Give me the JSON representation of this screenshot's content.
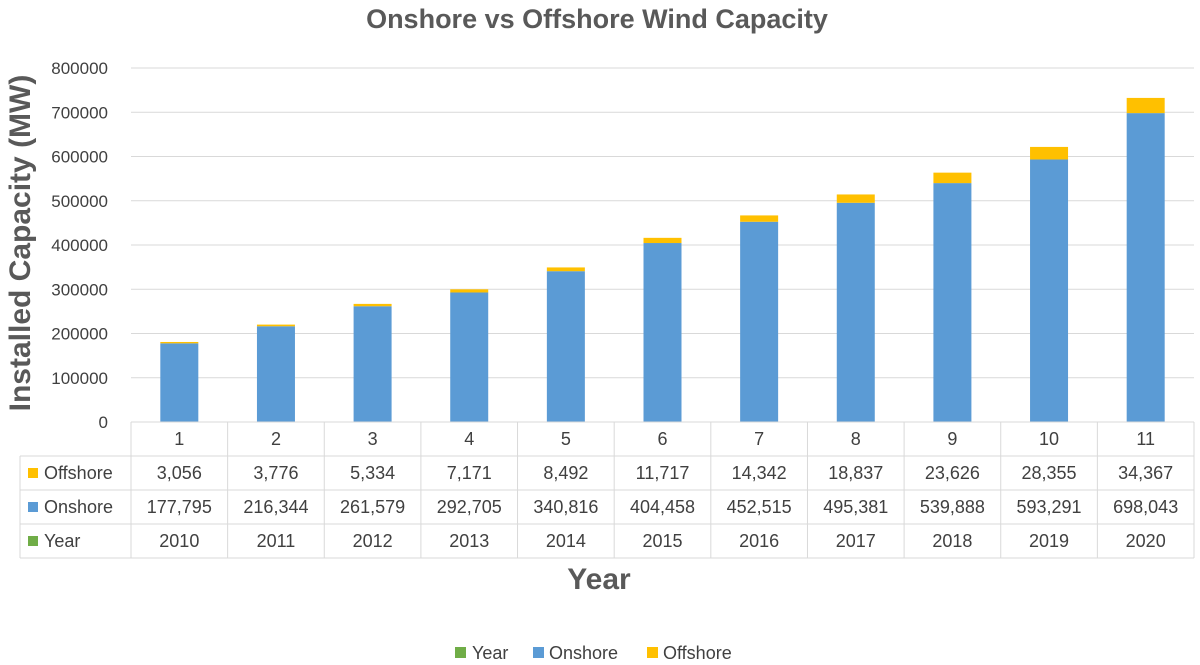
{
  "chart_data": {
    "type": "bar",
    "stacked": true,
    "title": "Onshore vs Offshore Wind Capacity",
    "xlabel": "Year",
    "ylabel": "Installed Capacity (MW)",
    "ylim": [
      0,
      800000
    ],
    "yticks": [
      "0",
      "100000",
      "200000",
      "300000",
      "400000",
      "500000",
      "600000",
      "700000",
      "800000"
    ],
    "categories": [
      "1",
      "2",
      "3",
      "4",
      "5",
      "6",
      "7",
      "8",
      "9",
      "10",
      "11"
    ],
    "grid": true,
    "legend_position": "bottom",
    "data_table": true,
    "series": [
      {
        "name": "Year",
        "color": "#70ad47",
        "plotted": false,
        "values": [
          2010,
          2011,
          2012,
          2013,
          2014,
          2015,
          2016,
          2017,
          2018,
          2019,
          2020
        ],
        "labels": [
          "2010",
          "2011",
          "2012",
          "2013",
          "2014",
          "2015",
          "2016",
          "2017",
          "2018",
          "2019",
          "2020"
        ]
      },
      {
        "name": "Onshore",
        "color": "#5b9bd5",
        "values": [
          177795,
          216344,
          261579,
          292705,
          340816,
          404458,
          452515,
          495381,
          539888,
          593291,
          698043
        ],
        "labels": [
          "177,795",
          "216,344",
          "261,579",
          "292,705",
          "340,816",
          "404,458",
          "452,515",
          "495,381",
          "539,888",
          "593,291",
          "698,043"
        ]
      },
      {
        "name": "Offshore",
        "color": "#ffc000",
        "values": [
          3056,
          3776,
          5334,
          7171,
          8492,
          11717,
          14342,
          18837,
          23626,
          28355,
          34367
        ],
        "labels": [
          "3,056",
          "3,776",
          "5,334",
          "7,171",
          "8,492",
          "11,717",
          "14,342",
          "18,837",
          "23,626",
          "28,355",
          "34,367"
        ]
      }
    ],
    "table_rows": [
      "Offshore",
      "Onshore",
      "Year"
    ],
    "legend_order": [
      "Year",
      "Onshore",
      "Offshore"
    ]
  }
}
